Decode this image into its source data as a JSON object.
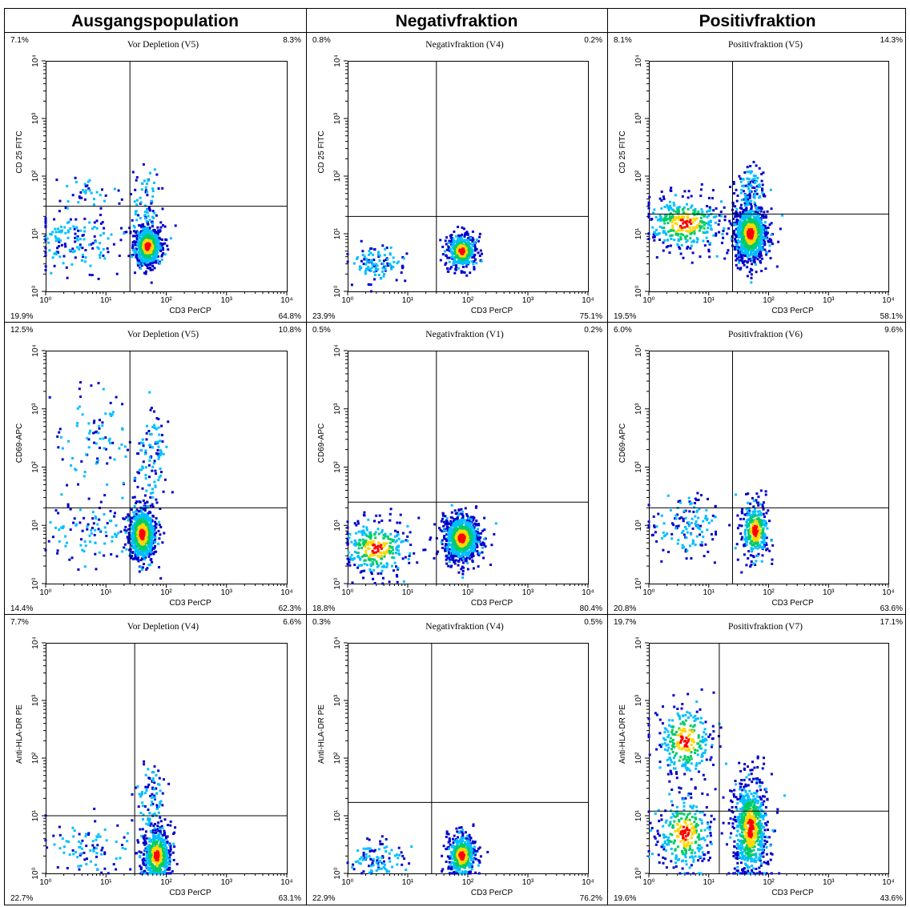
{
  "column_headers": [
    "Ausgangspopulation",
    "Negativfraktion",
    "Positivfraktion"
  ],
  "density_colors": [
    "#0000cd",
    "#00bfff",
    "#00cc66",
    "#ffd700",
    "#ff0000"
  ],
  "chart_data": [
    {
      "type": "scatter",
      "title": "Vor Depletion (V5)",
      "xlabel": "CD3 PerCP",
      "ylabel": "CD 25 FITC",
      "scale": "log",
      "xlim": [
        1,
        10000
      ],
      "ylim": [
        1,
        10000
      ],
      "x_ticks": [
        "10⁰",
        "10¹",
        "10²",
        "10³",
        "10⁴"
      ],
      "y_ticks": [
        "10⁰",
        "10¹",
        "10²",
        "10³",
        "10⁴"
      ],
      "quadrant_gate": {
        "x": 25,
        "y": 30
      },
      "quadrants": {
        "upper_left": "7.1%",
        "upper_right": "8.3%",
        "lower_left": "19.9%",
        "lower_right": "64.8%"
      },
      "populations": [
        {
          "x": 50,
          "y": 6,
          "spread": [
            0.12,
            0.18
          ],
          "n": 600
        },
        {
          "x": 45,
          "y": 25,
          "spread": [
            0.12,
            0.35
          ],
          "n": 90
        },
        {
          "x": 3,
          "y": 7,
          "spread": [
            0.35,
            0.25
          ],
          "n": 150
        },
        {
          "x": 5,
          "y": 50,
          "spread": [
            0.3,
            0.15
          ],
          "n": 40
        }
      ]
    },
    {
      "type": "scatter",
      "title": "Negativfraktion (V4)",
      "xlabel": "CD3 PerCP",
      "ylabel": "CD 25 FITC",
      "scale": "log",
      "xlim": [
        1,
        10000
      ],
      "ylim": [
        1,
        10000
      ],
      "x_ticks": [
        "10⁰",
        "10¹",
        "10²",
        "10³",
        "10⁴"
      ],
      "y_ticks": [
        "10⁰",
        "10¹",
        "10²",
        "10³",
        "10⁴"
      ],
      "quadrant_gate": {
        "x": 30,
        "y": 20
      },
      "quadrants": {
        "upper_left": "0.8%",
        "upper_right": "0.2%",
        "lower_left": "23.9%",
        "lower_right": "75.1%"
      },
      "populations": [
        {
          "x": 80,
          "y": 5,
          "spread": [
            0.12,
            0.15
          ],
          "n": 450
        },
        {
          "x": 3,
          "y": 3,
          "spread": [
            0.25,
            0.15
          ],
          "n": 120
        }
      ]
    },
    {
      "type": "scatter",
      "title": "Positivfraktion (V5)",
      "xlabel": "CD3 PerCP",
      "ylabel": "CD 25 FITC",
      "scale": "log",
      "xlim": [
        1,
        10000
      ],
      "ylim": [
        1,
        10000
      ],
      "x_ticks": [
        "10⁰",
        "10¹",
        "10²",
        "10³",
        "10⁴"
      ],
      "y_ticks": [
        "10⁰",
        "10¹",
        "10²",
        "10³",
        "10⁴"
      ],
      "quadrant_gate": {
        "x": 25,
        "y": 22
      },
      "quadrants": {
        "upper_left": "8.1%",
        "upper_right": "14.3%",
        "lower_left": "19.5%",
        "lower_right": "58.1%"
      },
      "populations": [
        {
          "x": 50,
          "y": 10,
          "spread": [
            0.14,
            0.25
          ],
          "n": 900
        },
        {
          "x": 4,
          "y": 15,
          "spread": [
            0.35,
            0.25
          ],
          "n": 350
        },
        {
          "x": 50,
          "y": 60,
          "spread": [
            0.12,
            0.2
          ],
          "n": 100
        }
      ]
    },
    {
      "type": "scatter",
      "title": "Vor Depletion (V5)",
      "xlabel": "CD3 PerCP",
      "ylabel": "CD69-APC",
      "scale": "log",
      "xlim": [
        1,
        10000
      ],
      "ylim": [
        1,
        10000
      ],
      "x_ticks": [
        "10⁰",
        "10¹",
        "10²",
        "10³",
        "10⁴"
      ],
      "y_ticks": [
        "10⁰",
        "10¹",
        "10²",
        "10³",
        "10⁴"
      ],
      "quadrant_gate": {
        "x": 25,
        "y": 20
      },
      "quadrants": {
        "upper_left": "12.5%",
        "upper_right": "10.8%",
        "lower_left": "14.4%",
        "lower_right": "62.3%"
      },
      "populations": [
        {
          "x": 40,
          "y": 7,
          "spread": [
            0.12,
            0.25
          ],
          "n": 650
        },
        {
          "x": 55,
          "y": 150,
          "spread": [
            0.12,
            0.45
          ],
          "n": 110
        },
        {
          "x": 7,
          "y": 250,
          "spread": [
            0.3,
            0.5
          ],
          "n": 90
        },
        {
          "x": 5,
          "y": 8,
          "spread": [
            0.35,
            0.25
          ],
          "n": 90
        }
      ]
    },
    {
      "type": "scatter",
      "title": "Negativfraktion (V1)",
      "xlabel": "CD3 PerCP",
      "ylabel": "CD69-APC",
      "scale": "log",
      "xlim": [
        1,
        10000
      ],
      "ylim": [
        1,
        10000
      ],
      "x_ticks": [
        "10⁰",
        "10¹",
        "10²",
        "10³",
        "10⁴"
      ],
      "y_ticks": [
        "10⁰",
        "10¹",
        "10²",
        "10³",
        "10⁴"
      ],
      "quadrant_gate": {
        "x": 30,
        "y": 25
      },
      "quadrants": {
        "upper_left": "0.5%",
        "upper_right": "0.2%",
        "lower_left": "18.8%",
        "lower_right": "80.4%"
      },
      "populations": [
        {
          "x": 80,
          "y": 6,
          "spread": [
            0.15,
            0.2
          ],
          "n": 900
        },
        {
          "x": 3,
          "y": 4,
          "spread": [
            0.3,
            0.25
          ],
          "n": 300
        }
      ]
    },
    {
      "type": "scatter",
      "title": "Positivfraktion (V6)",
      "xlabel": "CD3 PerCP",
      "ylabel": "CD69-APC",
      "scale": "log",
      "xlim": [
        1,
        10000
      ],
      "ylim": [
        1,
        10000
      ],
      "x_ticks": [
        "10⁰",
        "10¹",
        "10²",
        "10³",
        "10⁴"
      ],
      "y_ticks": [
        "10⁰",
        "10¹",
        "10²",
        "10³",
        "10⁴"
      ],
      "quadrant_gate": {
        "x": 25,
        "y": 20
      },
      "quadrants": {
        "upper_left": "6.0%",
        "upper_right": "9.6%",
        "lower_left": "20.8%",
        "lower_right": "63.6%"
      },
      "populations": [
        {
          "x": 60,
          "y": 8,
          "spread": [
            0.12,
            0.25
          ],
          "n": 320
        },
        {
          "x": 4,
          "y": 10,
          "spread": [
            0.3,
            0.25
          ],
          "n": 140
        }
      ]
    },
    {
      "type": "scatter",
      "title": "Vor Depletion (V4)",
      "xlabel": "CD3 PerCP",
      "ylabel": "Anti-HLA-DR PE",
      "scale": "log",
      "xlim": [
        1,
        10000
      ],
      "ylim": [
        1,
        10000
      ],
      "x_ticks": [
        "10⁰",
        "10¹",
        "10²",
        "10³",
        "10⁴"
      ],
      "y_ticks": [
        "10⁰",
        "10¹",
        "10²",
        "10³",
        "10⁴"
      ],
      "quadrant_gate": {
        "x": 30,
        "y": 10
      },
      "quadrants": {
        "upper_left": "7.7%",
        "upper_right": "6.6%",
        "lower_left": "22.7%",
        "lower_right": "63.1%"
      },
      "populations": [
        {
          "x": 70,
          "y": 2,
          "spread": [
            0.12,
            0.25
          ],
          "n": 550
        },
        {
          "x": 55,
          "y": 20,
          "spread": [
            0.12,
            0.35
          ],
          "n": 100
        },
        {
          "x": 6,
          "y": 3,
          "spread": [
            0.35,
            0.25
          ],
          "n": 90
        }
      ]
    },
    {
      "type": "scatter",
      "title": "Negativfraktion (V4)",
      "xlabel": "CD3 PerCP",
      "ylabel": "Anti-HLA-DR PE",
      "scale": "log",
      "xlim": [
        1,
        10000
      ],
      "ylim": [
        1,
        10000
      ],
      "x_ticks": [
        "10⁰",
        "10¹",
        "10²",
        "10³",
        "10⁴"
      ],
      "y_ticks": [
        "10⁰",
        "10¹",
        "10²",
        "10³",
        "10⁴"
      ],
      "quadrant_gate": {
        "x": 25,
        "y": 17
      },
      "quadrants": {
        "upper_left": "0.3%",
        "upper_right": "0.5%",
        "lower_left": "22.9%",
        "lower_right": "76.2%"
      },
      "populations": [
        {
          "x": 80,
          "y": 2,
          "spread": [
            0.12,
            0.2
          ],
          "n": 420
        },
        {
          "x": 3,
          "y": 1.8,
          "spread": [
            0.25,
            0.15
          ],
          "n": 100
        }
      ]
    },
    {
      "type": "scatter",
      "title": "Positivfraktion (V7)",
      "xlabel": "CD3 PerCP",
      "ylabel": "Anti-HLA-DR PE",
      "scale": "log",
      "xlim": [
        1,
        10000
      ],
      "ylim": [
        1,
        10000
      ],
      "x_ticks": [
        "10⁰",
        "10¹",
        "10²",
        "10³",
        "10⁴"
      ],
      "y_ticks": [
        "10⁰",
        "10¹",
        "10²",
        "10³",
        "10⁴"
      ],
      "quadrant_gate": {
        "x": 15,
        "y": 12
      },
      "quadrants": {
        "upper_left": "19.7%",
        "upper_right": "17.1%",
        "lower_left": "19.6%",
        "lower_right": "43.6%"
      },
      "populations": [
        {
          "x": 50,
          "y": 6,
          "spread": [
            0.15,
            0.45
          ],
          "n": 750
        },
        {
          "x": 4,
          "y": 5,
          "spread": [
            0.25,
            0.35
          ],
          "n": 300
        },
        {
          "x": 4,
          "y": 200,
          "spread": [
            0.25,
            0.35
          ],
          "n": 260
        }
      ]
    }
  ]
}
